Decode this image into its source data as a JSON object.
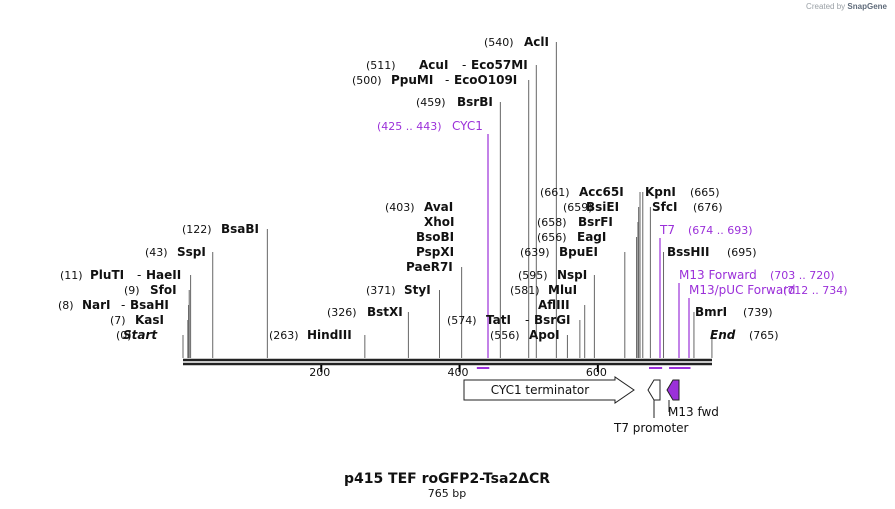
{
  "header": {
    "created_by": "Created by",
    "brand": "SnapGene"
  },
  "plasmid": {
    "name": "p415 TEF roGFP2-Tsa2ΔCR",
    "length_label": "765 bp",
    "length_bp": 765
  },
  "ruler": {
    "ticks": [
      200,
      400,
      600
    ]
  },
  "features": [
    {
      "name": "CYC1 terminator",
      "start": 413,
      "end": 660,
      "direction": "forward",
      "color": "#ffffff"
    },
    {
      "name": "T7 promoter",
      "start": 674,
      "end": 693,
      "direction": "reverse",
      "color": "#ffffff"
    },
    {
      "name": "M13 fwd",
      "start": 703,
      "end": 720,
      "direction": "reverse",
      "color": "#9b30d9"
    }
  ],
  "sites": [
    {
      "pos": "(0)",
      "names": [
        "Start"
      ],
      "bp": 0,
      "italic": true
    },
    {
      "pos": "(7)",
      "names": [
        "KasI"
      ],
      "bp": 7
    },
    {
      "pos": "(8)",
      "names": [
        "NarI",
        "BsaHI"
      ],
      "bp": 8
    },
    {
      "pos": "(9)",
      "names": [
        "SfoI"
      ],
      "bp": 9
    },
    {
      "pos": "(11)",
      "names": [
        "PluTI",
        "HaeII"
      ],
      "bp": 11
    },
    {
      "pos": "(43)",
      "names": [
        "SspI"
      ],
      "bp": 43
    },
    {
      "pos": "(122)",
      "names": [
        "BsaBI"
      ],
      "bp": 122
    },
    {
      "pos": "(263)",
      "names": [
        "HindIII"
      ],
      "bp": 263
    },
    {
      "pos": "(326)",
      "names": [
        "BstXI"
      ],
      "bp": 326
    },
    {
      "pos": "(371)",
      "names": [
        "StyI"
      ],
      "bp": 371
    },
    {
      "pos": "(403)",
      "names": [
        "AvaI",
        "XhoI",
        "BsoBI",
        "PspXI",
        "PaeR7I"
      ],
      "bp": 403
    },
    {
      "pos": "(459)",
      "names": [
        "BsrBI"
      ],
      "bp": 459
    },
    {
      "pos": "(500)",
      "names": [
        "PpuMI",
        "EcoO109I"
      ],
      "bp": 500
    },
    {
      "pos": "(511)",
      "names": [
        "AcuI",
        "Eco57MI"
      ],
      "bp": 511
    },
    {
      "pos": "(540)",
      "names": [
        "AclI"
      ],
      "bp": 540
    },
    {
      "pos": "(556)",
      "names": [
        "ApoI"
      ],
      "bp": 556
    },
    {
      "pos": "(574)",
      "names": [
        "TatI",
        "BsrGI"
      ],
      "bp": 574
    },
    {
      "pos": "(581)",
      "names": [
        "MluI",
        "AflIII"
      ],
      "bp": 581
    },
    {
      "pos": "(595)",
      "names": [
        "NspI"
      ],
      "bp": 595
    },
    {
      "pos": "(639)",
      "names": [
        "BpuEI"
      ],
      "bp": 639
    },
    {
      "pos": "(656)",
      "names": [
        "EagI"
      ],
      "bp": 656
    },
    {
      "pos": "(658)",
      "names": [
        "BsrFI"
      ],
      "bp": 658
    },
    {
      "pos": "(659)",
      "names": [
        "BsiEI"
      ],
      "bp": 659
    },
    {
      "pos": "(661)",
      "names": [
        "Acc65I"
      ],
      "bp": 661
    },
    {
      "pos": "(665)",
      "names": [
        "KpnI"
      ],
      "bp": 665
    },
    {
      "pos": "(676)",
      "names": [
        "SfcI"
      ],
      "bp": 676
    },
    {
      "pos": "(695)",
      "names": [
        "BssHII"
      ],
      "bp": 695
    },
    {
      "pos": "(739)",
      "names": [
        "BmrI"
      ],
      "bp": 739
    },
    {
      "pos": "(765)",
      "names": [
        "End"
      ],
      "bp": 765,
      "italic": true
    }
  ],
  "primers": [
    {
      "name": "CYC1",
      "range": "(425 .. 443)",
      "start": 425,
      "end": 443
    },
    {
      "name": "T7",
      "range": "(674 .. 693)",
      "start": 674,
      "end": 693
    },
    {
      "name": "M13 Forward",
      "range": "(703 .. 720)",
      "start": 703,
      "end": 720
    },
    {
      "name": "M13/pUC Forward",
      "range": "(712 .. 734)",
      "start": 712,
      "end": 734
    }
  ],
  "colors": {
    "backbone": "#222222",
    "primer": "#9b30d9",
    "site_line": "#555555"
  }
}
